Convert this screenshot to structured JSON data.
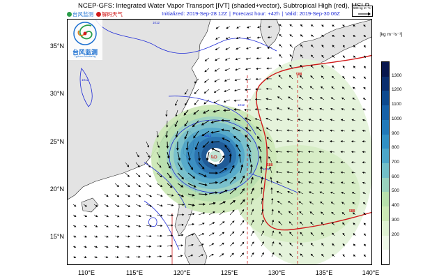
{
  "title": "NCEP-GFS: Integrated Water Vapor Transport [IVT] (shaded+vector), Subtropical High (red), MSLP",
  "subtitle": {
    "initialized": "Initialized: 2019-Sep-28 12Z",
    "forecast": "Forecast hour: +42h",
    "valid": "Valid: 2019-Sep-30 06Z",
    "separator": "|"
  },
  "brand": {
    "left": "台风监测",
    "right": "解码天气"
  },
  "logo": {
    "text": "台风监测",
    "sub": "Typhoon Monitoring"
  },
  "vector_reference": {
    "label": "500 kg m⁻¹s⁻¹"
  },
  "colorbar": {
    "unit": "[kg m⁻¹s⁻¹]",
    "ticks": [
      "1300",
      "1200",
      "1100",
      "1000",
      "900",
      "800",
      "700",
      "600",
      "500",
      "400",
      "300",
      "200"
    ],
    "colors": [
      "#08174d",
      "#0b2f6e",
      "#0d4a8f",
      "#1661a8",
      "#2179b9",
      "#3190c4",
      "#4ca6c9",
      "#72bfc8",
      "#99d2bd",
      "#b8e0ac",
      "#cde9b6",
      "#dff2d2",
      "#eef8e7",
      "#ffffff"
    ]
  },
  "axes": {
    "lat_labels": [
      "35°N",
      "30°N",
      "25°N",
      "20°N",
      "15°N"
    ],
    "lon_labels": [
      "110°E",
      "115°E",
      "120°E",
      "125°E",
      "130°E",
      "135°E",
      "140°E"
    ]
  },
  "isobar_labels": [
    "1012",
    "1012",
    "1012",
    "1008",
    "1012"
  ],
  "subtropical_high_labels": [
    "588",
    "588",
    "588"
  ],
  "typhoon_marker": "L",
  "colors": {
    "land": "#e3e3e3",
    "ocean": "#ffffff",
    "isobar": "#1f2bd6",
    "high": "#d11b1b",
    "vector": "#000000"
  }
}
